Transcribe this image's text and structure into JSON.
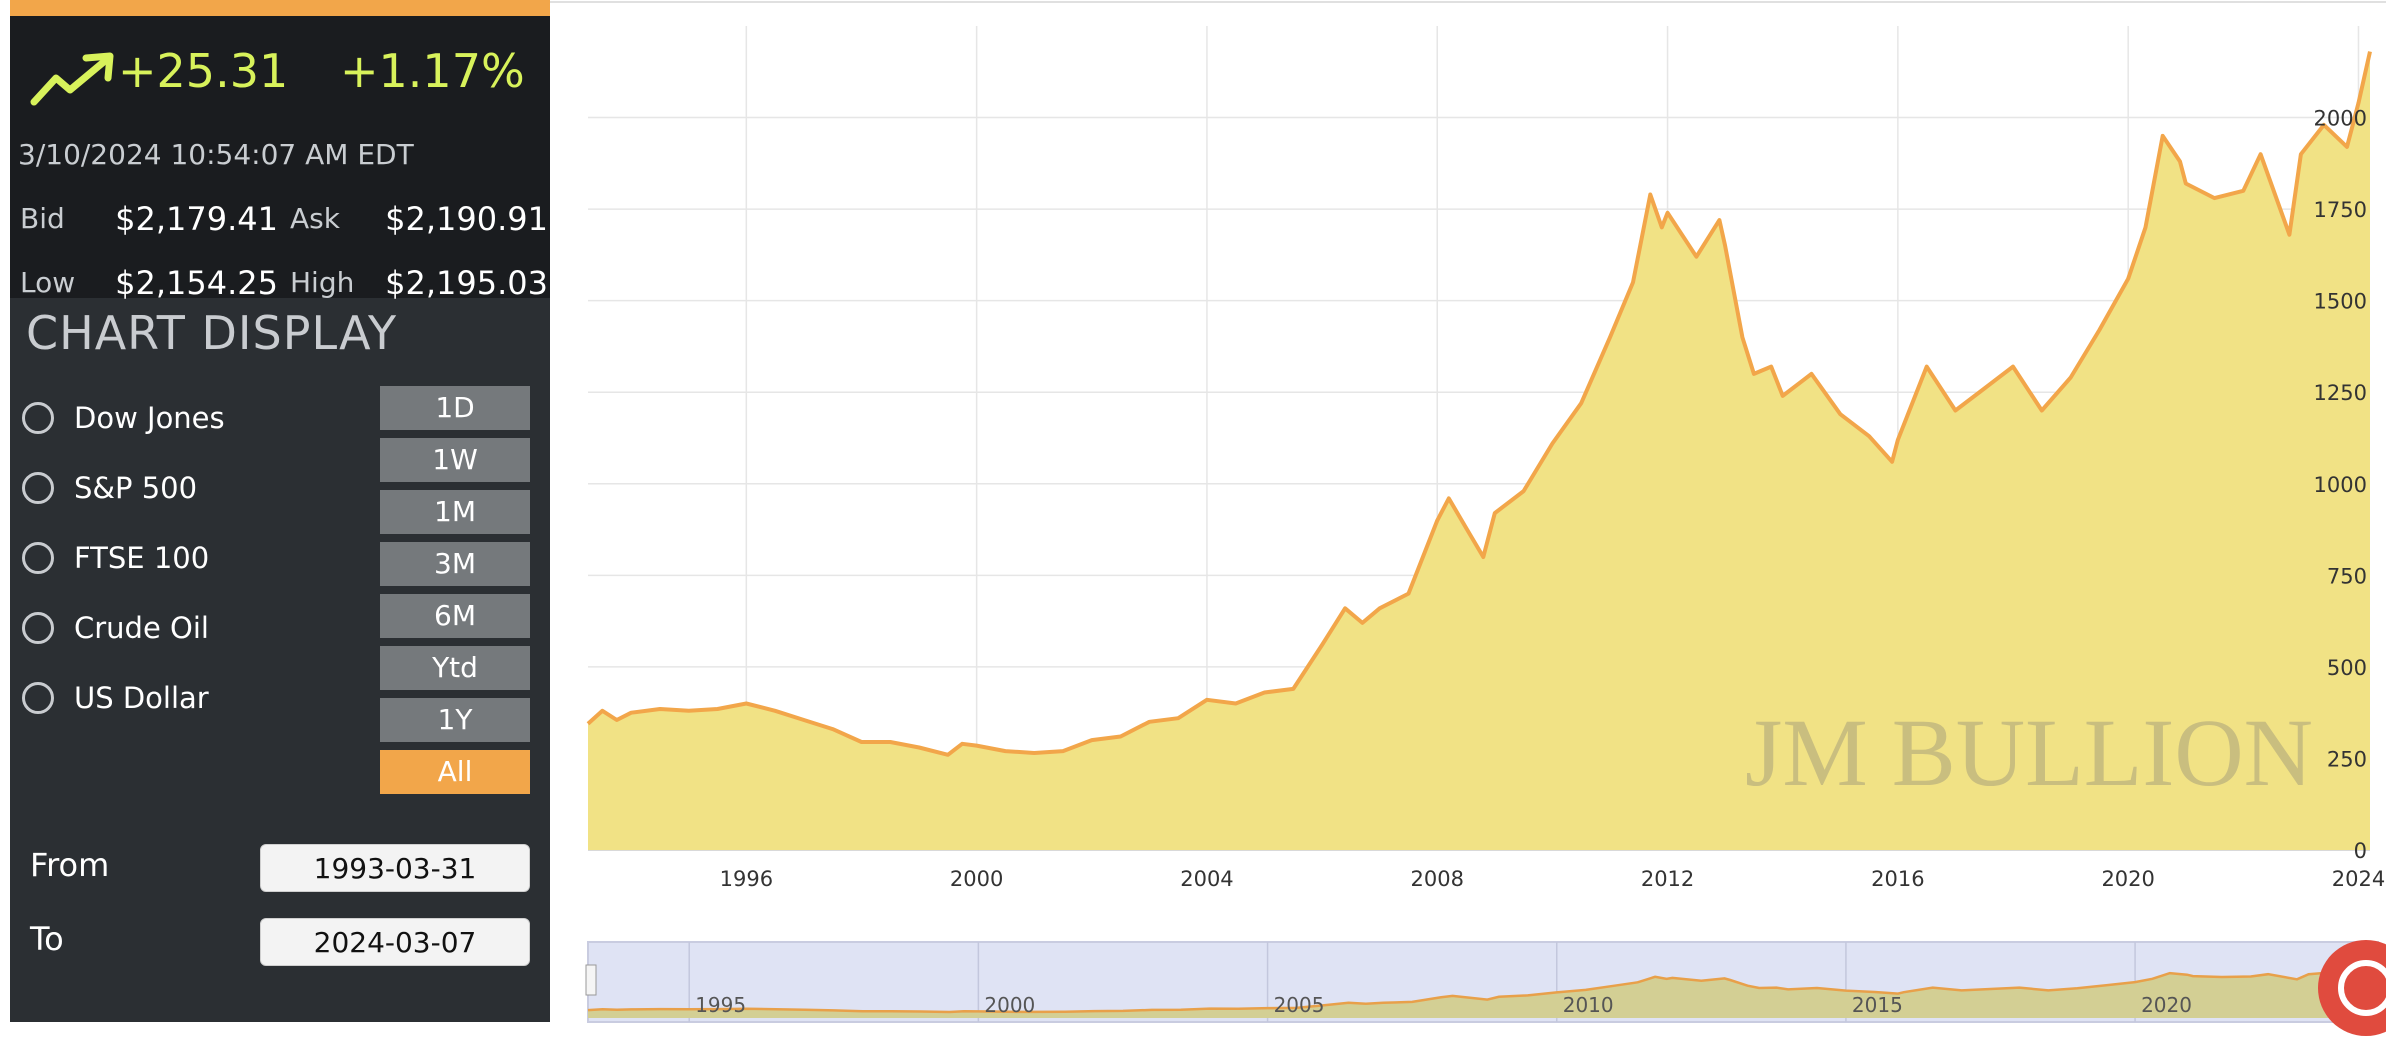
{
  "quote": {
    "change_abs": "+25.31",
    "change_pct": "+1.17%",
    "timestamp": "3/10/2024 10:54:07 AM EDT",
    "bid_label": "Bid",
    "bid_value": "$2,179.41",
    "ask_label": "Ask",
    "ask_value": "$2,190.91",
    "low_label": "Low",
    "low_value": "$2,154.25",
    "high_label": "High",
    "high_value": "$2,195.03",
    "trend_icon": "trending-up-icon",
    "accent_color": "#d8f25b"
  },
  "chart_display": {
    "title": "CHART DISPLAY",
    "overlays": [
      {
        "label": "Dow Jones",
        "checked": false
      },
      {
        "label": "S&P 500",
        "checked": false
      },
      {
        "label": "FTSE 100",
        "checked": false
      },
      {
        "label": "Crude Oil",
        "checked": false
      },
      {
        "label": "US Dollar",
        "checked": false
      }
    ],
    "ranges": [
      "1D",
      "1W",
      "1M",
      "3M",
      "6M",
      "Ytd",
      "1Y",
      "All"
    ],
    "active_range": "All",
    "from_label": "From",
    "from_value": "1993-03-31",
    "to_label": "To",
    "to_value": "2024-03-07",
    "active_color": "#f2a64a"
  },
  "watermark": "JM BULLION",
  "help_icon": "chat-help-icon",
  "chart_data": {
    "type": "area",
    "x_type": "year",
    "xlim": [
      1993.25,
      2024.2
    ],
    "ylim": [
      0,
      2250
    ],
    "x_ticks": [
      "1996",
      "2000",
      "2004",
      "2008",
      "2012",
      "2016",
      "2020",
      "2024"
    ],
    "y_ticks": [
      "0",
      "250",
      "500",
      "750",
      "1000",
      "1250",
      "1500",
      "1750",
      "2000"
    ],
    "y_axis_position": "right",
    "grid": true,
    "line_color": "#f2a64a",
    "fill_color": "#f1e285",
    "series": [
      {
        "x": [
          1993.25,
          1993.5,
          1993.75,
          1994,
          1994.5,
          1995,
          1995.5,
          1996,
          1996.5,
          1997,
          1997.5,
          1998,
          1998.5,
          1999,
          1999.5,
          1999.75,
          2000,
          2000.5,
          2001,
          2001.5,
          2002,
          2002.5,
          2003,
          2003.5,
          2004,
          2004.5,
          2005,
          2005.5,
          2006,
          2006.4,
          2006.7,
          2007,
          2007.5,
          2008,
          2008.2,
          2008.5,
          2008.8,
          2009,
          2009.5,
          2010,
          2010.5,
          2011,
          2011.4,
          2011.7,
          2011.9,
          2012,
          2012.5,
          2012.9,
          2013,
          2013.3,
          2013.5,
          2013.8,
          2014,
          2014.5,
          2015,
          2015.5,
          2015.9,
          2016,
          2016.5,
          2017,
          2017.5,
          2018,
          2018.5,
          2019,
          2019.5,
          2020,
          2020.3,
          2020.6,
          2020.9,
          2021,
          2021.5,
          2022,
          2022.3,
          2022.8,
          2023,
          2023.4,
          2023.8,
          2024,
          2024.2
        ],
        "y": [
          345,
          380,
          355,
          375,
          385,
          380,
          385,
          400,
          380,
          355,
          330,
          295,
          295,
          280,
          260,
          290,
          285,
          270,
          265,
          270,
          300,
          310,
          350,
          360,
          410,
          400,
          430,
          440,
          560,
          660,
          620,
          660,
          700,
          900,
          960,
          880,
          800,
          920,
          980,
          1110,
          1220,
          1400,
          1550,
          1790,
          1700,
          1740,
          1620,
          1720,
          1650,
          1400,
          1300,
          1320,
          1240,
          1300,
          1190,
          1130,
          1060,
          1120,
          1320,
          1200,
          1260,
          1320,
          1200,
          1290,
          1420,
          1560,
          1700,
          1950,
          1880,
          1820,
          1780,
          1800,
          1900,
          1680,
          1900,
          1980,
          1920,
          2040,
          2180
        ]
      }
    ],
    "navigator": {
      "x_ticks": [
        "1995",
        "2000",
        "2005",
        "2010",
        "2015",
        "2020"
      ]
    }
  }
}
